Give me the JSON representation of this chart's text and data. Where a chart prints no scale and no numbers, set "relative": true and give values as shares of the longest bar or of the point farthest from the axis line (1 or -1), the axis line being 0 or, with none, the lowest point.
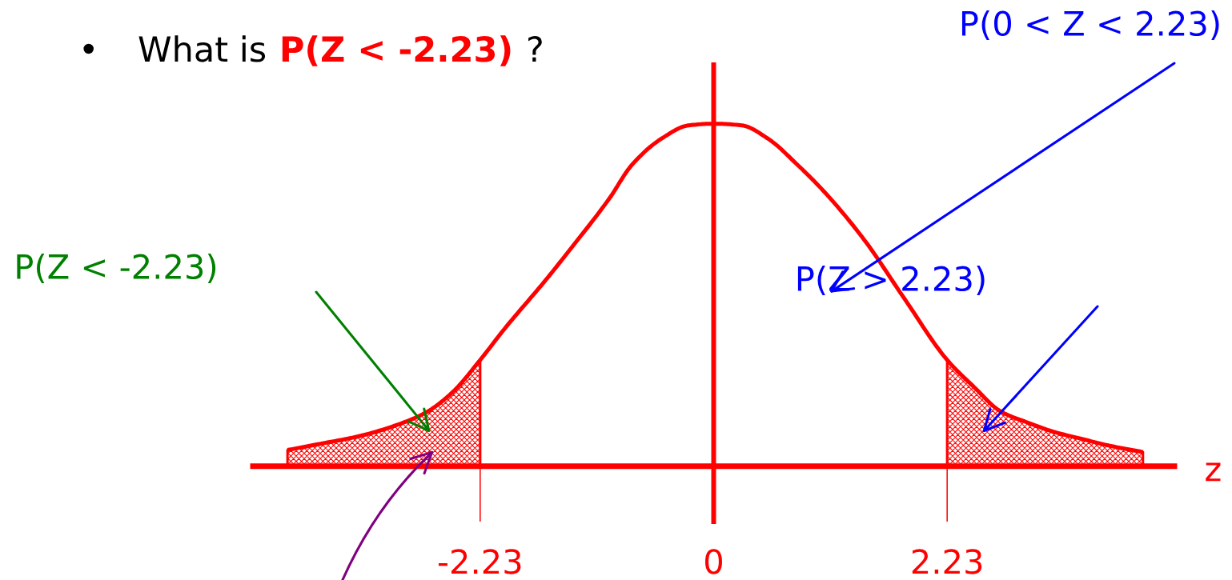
{
  "chart_data": {
    "type": "line",
    "title": "• What is P(Z < -2.23) ?",
    "xlabel": "z",
    "relative": true,
    "xlim": [
      -4.4,
      4.4
    ],
    "xticks": [
      -2.23,
      0,
      2.23
    ],
    "ref_lines": [
      {
        "axis": "x",
        "value": 0,
        "color": "#ff0000"
      }
    ],
    "series": [
      {
        "type": "area",
        "color": "#ff0000",
        "x": [
          -4.07,
          -3.76,
          -3.38,
          -3.0,
          -2.74,
          -2.49,
          -2.23
        ],
        "values": [
          0.047,
          0.065,
          0.088,
          0.123,
          0.158,
          0.217,
          0.31
        ]
      },
      {
        "type": "area",
        "color": "#ff0000",
        "x": [
          2.23,
          2.49,
          2.74,
          3.0,
          3.25,
          3.51,
          3.76,
          4.1
        ],
        "values": [
          0.31,
          0.23,
          0.16,
          0.127,
          0.1,
          0.08,
          0.061,
          0.041
        ]
      },
      {
        "color": "#ff0000",
        "x": [
          -4.07,
          -3.76,
          -3.38,
          -3.0,
          -2.74,
          -2.49,
          -2.23,
          -2.0,
          -1.6,
          -1.36,
          -1.0,
          -0.78,
          -0.5,
          -0.24,
          0,
          0.27,
          0.52,
          0.8,
          1.06,
          1.44,
          1.82,
          2.23,
          2.49,
          2.74,
          3.0,
          3.25,
          3.51,
          3.76,
          4.1
        ],
        "values": [
          0.047,
          0.065,
          0.088,
          0.123,
          0.158,
          0.217,
          0.31,
          0.4,
          0.545,
          0.637,
          0.78,
          0.88,
          0.956,
          0.995,
          1.0,
          0.995,
          0.956,
          0.88,
          0.8,
          0.66,
          0.49,
          0.31,
          0.23,
          0.16,
          0.127,
          0.1,
          0.08,
          0.061,
          0.041
        ]
      }
    ],
    "annotations": [
      "P(Z < -2.23)",
      "P(0 < Z < 2.23)",
      "P(Z > 2.23)"
    ]
  }
}
